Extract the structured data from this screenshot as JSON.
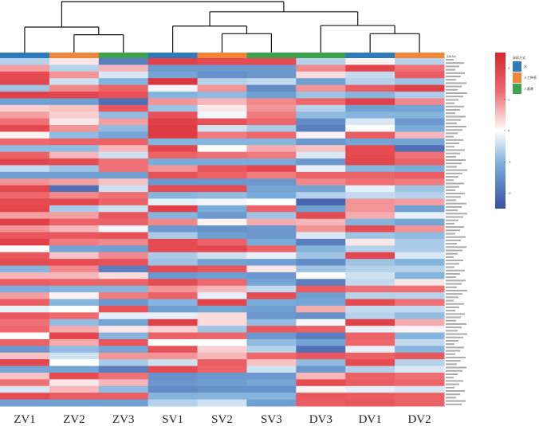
{
  "chart_data": {
    "type": "heatmap",
    "title": "",
    "xlabel": "",
    "ylabel": "",
    "columns": [
      "ZV1",
      "ZV2",
      "ZV3",
      "SV1",
      "SV2",
      "SV3",
      "DV3",
      "DV1",
      "DV2"
    ],
    "column_groups": [
      0,
      1,
      2,
      0,
      1,
      2,
      2,
      0,
      1
    ],
    "group_colors": [
      "#2f7ab9",
      "#f0863a",
      "#3fa34d"
    ],
    "annotation_title": "采样方式",
    "legend": {
      "title": "采样方式",
      "entries": [
        {
          "label": "水",
          "color": "#2f7ab9"
        },
        {
          "label": "人工种养",
          "color": "#f0863a"
        },
        {
          "label": "人畜粪",
          "color": "#3fa34d"
        }
      ]
    },
    "colorbar": {
      "range": [
        -2.5,
        2.5
      ],
      "ticks": [
        "2",
        "1",
        "0",
        "-1",
        "-2"
      ],
      "tick_values": [
        2,
        1,
        0,
        -1,
        -2
      ],
      "colors": [
        "#3b4fa3",
        "#5b9bd5",
        "#ffffff",
        "#f08080",
        "#d7262e"
      ]
    },
    "dendrogram": {
      "merges": [
        {
          "a": "ZV2",
          "b": "ZV3",
          "height": 0.35
        },
        {
          "a": "ZV1",
          "b": "ZV2+ZV3",
          "height": 0.5
        },
        {
          "a": "SV2",
          "b": "SV3",
          "height": 0.37
        },
        {
          "a": "SV1",
          "b": "SV2+SV3",
          "height": 0.52
        },
        {
          "a": "DV1",
          "b": "DV2",
          "height": 0.37
        },
        {
          "a": "DV3",
          "b": "DV1+DV2",
          "height": 0.53
        },
        {
          "a": "S",
          "b": "D",
          "height": 0.8
        },
        {
          "a": "Z",
          "b": "S+D",
          "height": 1.0
        }
      ]
    },
    "rows": [
      [
        -0.6,
        0.2,
        -1.8,
        2.0,
        1.8,
        1.8,
        -0.6,
        0.1,
        -0.6
      ],
      [
        0.8,
        -0.6,
        0.6,
        -1.4,
        -1.4,
        -1.4,
        1.0,
        1.9,
        1.2
      ],
      [
        1.8,
        0.9,
        -0.3,
        -1.2,
        -1.5,
        -1.4,
        0.3,
        -0.5,
        1.5
      ],
      [
        1.9,
        -0.4,
        -1.0,
        2.2,
        -0.6,
        -0.5,
        -1.3,
        -0.6,
        -0.8
      ],
      [
        -0.8,
        1.0,
        1.4,
        -0.1,
        0.9,
        -1.6,
        0.9,
        1.5,
        2.0
      ],
      [
        2.0,
        1.9,
        1.7,
        -1.0,
        -0.9,
        -1.3,
        -0.8,
        -1.0,
        -0.7
      ],
      [
        -1.3,
        -1.3,
        -2.0,
        0.9,
        0.6,
        1.0,
        1.3,
        2.0,
        1.0
      ],
      [
        0.4,
        0.5,
        1.6,
        -0.8,
        0.2,
        0.9,
        -0.6,
        -1.3,
        -1.2
      ],
      [
        0.8,
        0.4,
        -0.9,
        1.7,
        -0.1,
        1.1,
        -0.9,
        -1.0,
        -1.0
      ],
      [
        1.2,
        0.2,
        0.8,
        2.0,
        1.7,
        1.3,
        -1.6,
        -0.3,
        -1.4
      ],
      [
        1.9,
        0.9,
        -0.9,
        2.1,
        -0.4,
        -0.7,
        -1.8,
        0.0,
        -1.1
      ],
      [
        0.1,
        -0.9,
        -1.2,
        2.1,
        1.1,
        1.3,
        0.1,
        1.5,
        0.6
      ],
      [
        1.3,
        1.4,
        1.4,
        -1.0,
        -1.0,
        -1.0,
        -1.4,
        -1.2,
        -1.2
      ],
      [
        -0.9,
        -0.9,
        0.6,
        1.9,
        0.0,
        0.7,
        0.5,
        1.8,
        -2.0
      ],
      [
        1.4,
        0.6,
        -0.4,
        1.4,
        1.2,
        1.1,
        -0.3,
        1.8,
        1.2
      ],
      [
        1.9,
        1.8,
        1.2,
        -1.1,
        -1.1,
        -1.1,
        -1.4,
        1.9,
        1.4
      ],
      [
        -0.5,
        -0.8,
        1.2,
        0.9,
        1.6,
        1.9,
        -0.2,
        -1.0,
        -1.1
      ],
      [
        -1.3,
        -1.3,
        -1.3,
        1.7,
        1.4,
        1.1,
        1.4,
        1.4,
        1.5
      ],
      [
        0.9,
        0.8,
        0.5,
        -1.4,
        -1.4,
        -1.4,
        1.0,
        1.2,
        1.1
      ],
      [
        1.9,
        -2.0,
        -0.4,
        1.8,
        1.8,
        -1.2,
        -1.2,
        -0.2,
        -0.8
      ],
      [
        1.3,
        1.0,
        1.2,
        -1.0,
        -0.9,
        -1.1,
        -0.6,
        -0.5,
        -0.6
      ],
      [
        1.8,
        1.9,
        1.4,
        -0.2,
        -0.1,
        0.0,
        -2.2,
        0.9,
        0.8
      ],
      [
        1.9,
        -0.7,
        -0.4,
        2.0,
        -1.1,
        1.4,
        -1.3,
        0.9,
        -1.3
      ],
      [
        0.8,
        0.8,
        1.6,
        -1.0,
        -1.4,
        -0.8,
        1.8,
        0.7,
        -0.2
      ],
      [
        2.0,
        1.4,
        1.4,
        1.0,
        0.1,
        0.7,
        0.6,
        -1.0,
        -1.2
      ],
      [
        0.9,
        0.6,
        -0.1,
        -1.4,
        -1.5,
        -1.4,
        0.9,
        1.8,
        0.9
      ],
      [
        1.6,
        1.6,
        1.7,
        -0.7,
        -1.3,
        -1.4,
        -0.3,
        -0.8,
        -0.9
      ],
      [
        2.0,
        1.1,
        1.0,
        1.8,
        1.4,
        -1.1,
        -1.8,
        0.2,
        -0.7
      ],
      [
        0.0,
        -1.2,
        -1.3,
        1.8,
        1.9,
        1.4,
        -1.0,
        -0.6,
        -0.7
      ],
      [
        1.6,
        0.5,
        1.0,
        -0.7,
        -0.4,
        -0.2,
        -0.8,
        1.9,
        -0.3
      ],
      [
        1.8,
        1.8,
        1.7,
        -0.8,
        -1.2,
        -1.3,
        -1.6,
        -0.8,
        -1.0
      ],
      [
        -1.0,
        1.0,
        -1.8,
        1.8,
        1.6,
        0.2,
        -0.8,
        -0.6,
        -0.6
      ],
      [
        0.6,
        0.6,
        0.3,
        -1.4,
        -1.3,
        -1.4,
        0.0,
        -0.4,
        -1.0
      ],
      [
        1.5,
        1.4,
        1.4,
        1.8,
        1.3,
        -1.2,
        -1.8,
        -0.5,
        0.2
      ],
      [
        -1.1,
        -1.0,
        -1.0,
        0.9,
        0.6,
        -0.5,
        1.5,
        1.2,
        1.2
      ],
      [
        0.8,
        0.1,
        1.1,
        1.4,
        -0.2,
        1.8,
        -1.3,
        -0.6,
        -0.6
      ],
      [
        1.5,
        -1.0,
        -1.4,
        -1.0,
        1.9,
        -1.1,
        -1.2,
        1.8,
        1.2
      ],
      [
        -0.2,
        0.0,
        1.7,
        -1.3,
        -1.2,
        -1.3,
        0.7,
        -0.5,
        -0.5
      ],
      [
        1.6,
        1.3,
        -0.2,
        -0.2,
        0.3,
        -1.4,
        -1.5,
        -0.6,
        -0.9
      ],
      [
        1.2,
        -0.9,
        -1.2,
        2.0,
        0.3,
        -0.9,
        -0.1,
        2.0,
        0.7
      ],
      [
        1.3,
        0.7,
        0.2,
        0.4,
        -0.8,
        1.6,
        1.4,
        -0.2,
        0.1
      ],
      [
        0.0,
        1.9,
        -1.0,
        1.4,
        1.3,
        -1.4,
        -1.8,
        1.4,
        -1.0
      ],
      [
        1.4,
        0.7,
        1.6,
        0.0,
        0.0,
        -0.9,
        -1.2,
        1.3,
        -0.5
      ],
      [
        -1.4,
        -0.9,
        -1.2,
        1.7,
        0.4,
        -0.6,
        -2.0,
        -0.2,
        -1.0
      ],
      [
        0.5,
        -0.4,
        0.9,
        0.9,
        0.6,
        1.3,
        1.6,
        1.4,
        1.6
      ],
      [
        1.9,
        0.0,
        -0.7,
        -0.4,
        1.5,
        0.5,
        -0.9,
        1.8,
        -0.6
      ],
      [
        -1.2,
        -1.2,
        -1.8,
        1.8,
        1.4,
        -0.4,
        -1.4,
        -0.6,
        -0.3
      ],
      [
        0.5,
        1.8,
        1.2,
        -1.5,
        -1.4,
        -1.4,
        0.6,
        1.4,
        1.2
      ],
      [
        1.2,
        0.2,
        0.6,
        -1.4,
        -1.3,
        -1.2,
        1.8,
        1.5,
        1.3
      ],
      [
        -0.3,
        0.6,
        -0.9,
        -1.6,
        -1.5,
        -1.5,
        0.1,
        -0.2,
        -0.3
      ],
      [
        1.8,
        1.5,
        1.5,
        -1.0,
        -1.0,
        -1.0,
        1.6,
        1.5,
        1.4
      ],
      [
        -1.3,
        -1.3,
        -1.3,
        -0.6,
        -0.4,
        -1.3,
        1.5,
        1.6,
        1.4
      ]
    ]
  }
}
